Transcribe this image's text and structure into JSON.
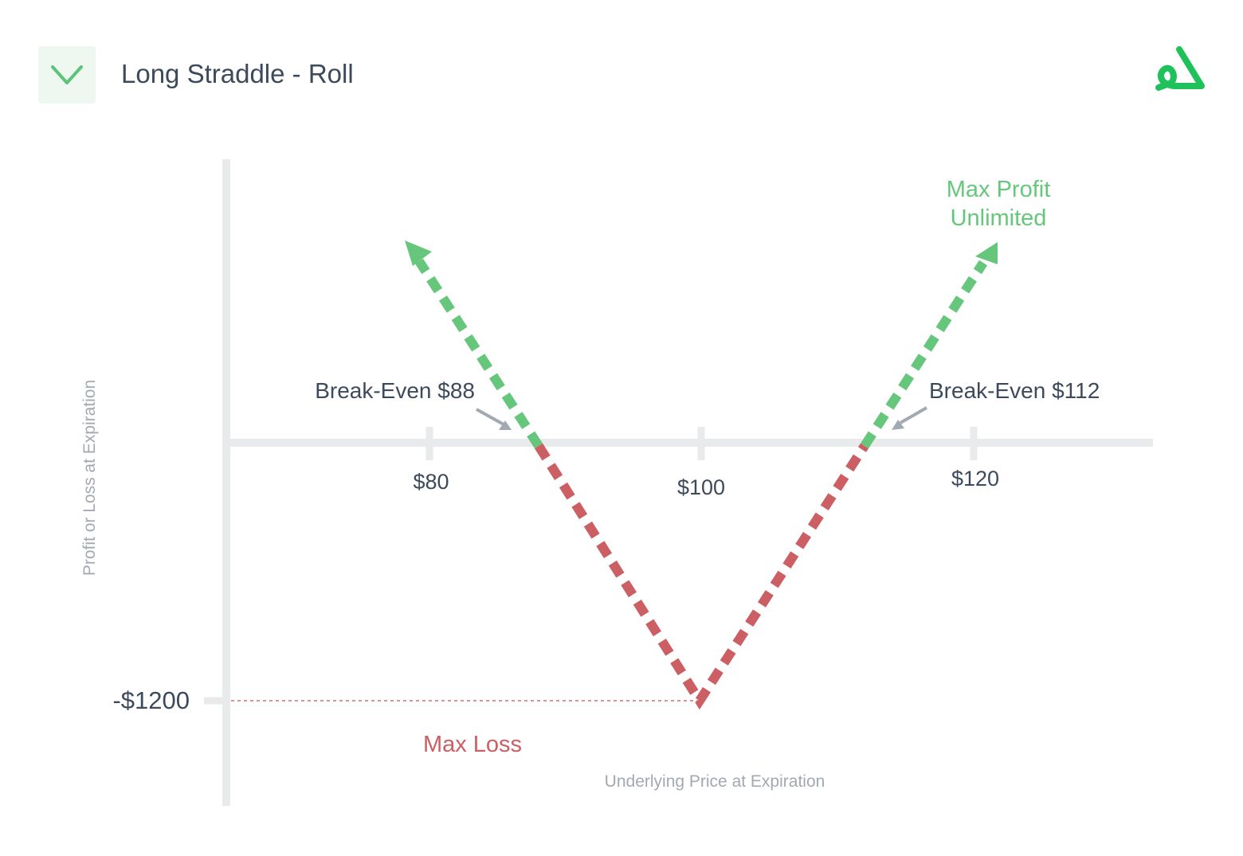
{
  "header": {
    "title": "Long Straddle - Roll"
  },
  "axes": {
    "y_label": "Profit or Loss at Expiration",
    "x_label": "Underlying Price at Expiration",
    "x_ticks": [
      "$80",
      "$100",
      "$120"
    ],
    "y_tick": "-$1200"
  },
  "annotations": {
    "max_profit": [
      "Max Profit",
      "Unlimited"
    ],
    "max_loss": "Max Loss",
    "break_even_low": "Break-Even $88",
    "break_even_high": "Break-Even $112"
  }
}
